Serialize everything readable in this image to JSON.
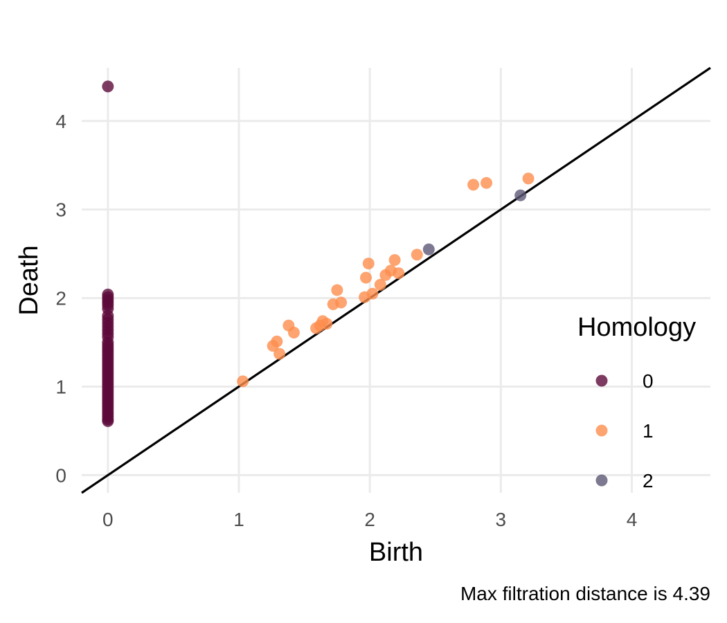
{
  "chart_data": {
    "type": "scatter",
    "title": "",
    "xlabel": "Birth",
    "ylabel": "Death",
    "xlim": [
      -0.2,
      4.6
    ],
    "ylim": [
      -0.2,
      4.6
    ],
    "x_ticks": [
      0,
      1,
      2,
      3,
      4
    ],
    "y_ticks": [
      0,
      1,
      2,
      3,
      4
    ],
    "grid": true,
    "diagonal": true,
    "legend": {
      "title": "Homology",
      "placement": "right"
    },
    "caption": "Max filtration distance is 4.39",
    "series": [
      {
        "name": "0",
        "color": "#5c0a3b",
        "points": [
          [
            0,
            4.39
          ],
          [
            0,
            2.04
          ],
          [
            0,
            2.01
          ],
          [
            0,
            1.98
          ],
          [
            0,
            1.95
          ],
          [
            0,
            1.92
          ],
          [
            0,
            1.88
          ],
          [
            0,
            1.8
          ],
          [
            0,
            1.76
          ],
          [
            0,
            1.72
          ],
          [
            0,
            1.68
          ],
          [
            0,
            1.64
          ],
          [
            0,
            1.6
          ],
          [
            0,
            1.56
          ],
          [
            0,
            1.5
          ],
          [
            0,
            1.47
          ],
          [
            0,
            1.44
          ],
          [
            0,
            1.41
          ],
          [
            0,
            1.38
          ],
          [
            0,
            1.35
          ],
          [
            0,
            1.32
          ],
          [
            0,
            1.29
          ],
          [
            0,
            1.26
          ],
          [
            0,
            1.23
          ],
          [
            0,
            1.2
          ],
          [
            0,
            1.17
          ],
          [
            0,
            1.14
          ],
          [
            0,
            1.11
          ],
          [
            0,
            1.08
          ],
          [
            0,
            1.05
          ],
          [
            0,
            1.02
          ],
          [
            0,
            0.99
          ],
          [
            0,
            0.96
          ],
          [
            0,
            0.93
          ],
          [
            0,
            0.9
          ],
          [
            0,
            0.87
          ],
          [
            0,
            0.84
          ],
          [
            0,
            0.81
          ],
          [
            0,
            0.78
          ],
          [
            0,
            0.75
          ],
          [
            0,
            0.72
          ],
          [
            0,
            0.69
          ],
          [
            0,
            0.66
          ],
          [
            0,
            0.63
          ],
          [
            0,
            0.61
          ]
        ]
      },
      {
        "name": "1",
        "color": "#fd8d4d",
        "points": [
          [
            1.03,
            1.06
          ],
          [
            1.26,
            1.46
          ],
          [
            1.29,
            1.51
          ],
          [
            1.31,
            1.37
          ],
          [
            1.38,
            1.69
          ],
          [
            1.42,
            1.61
          ],
          [
            1.59,
            1.66
          ],
          [
            1.62,
            1.69
          ],
          [
            1.64,
            1.74
          ],
          [
            1.67,
            1.71
          ],
          [
            1.72,
            1.93
          ],
          [
            1.75,
            2.09
          ],
          [
            1.78,
            1.95
          ],
          [
            1.96,
            2.01
          ],
          [
            1.97,
            2.23
          ],
          [
            1.99,
            2.39
          ],
          [
            2.02,
            2.05
          ],
          [
            2.08,
            2.15
          ],
          [
            2.12,
            2.26
          ],
          [
            2.16,
            2.31
          ],
          [
            2.19,
            2.43
          ],
          [
            2.22,
            2.28
          ],
          [
            2.36,
            2.49
          ],
          [
            2.79,
            3.28
          ],
          [
            2.89,
            3.3
          ],
          [
            3.21,
            3.35
          ]
        ]
      },
      {
        "name": "2",
        "color": "#5b5876",
        "points": [
          [
            2.45,
            2.55
          ],
          [
            3.15,
            3.16
          ]
        ]
      }
    ]
  }
}
